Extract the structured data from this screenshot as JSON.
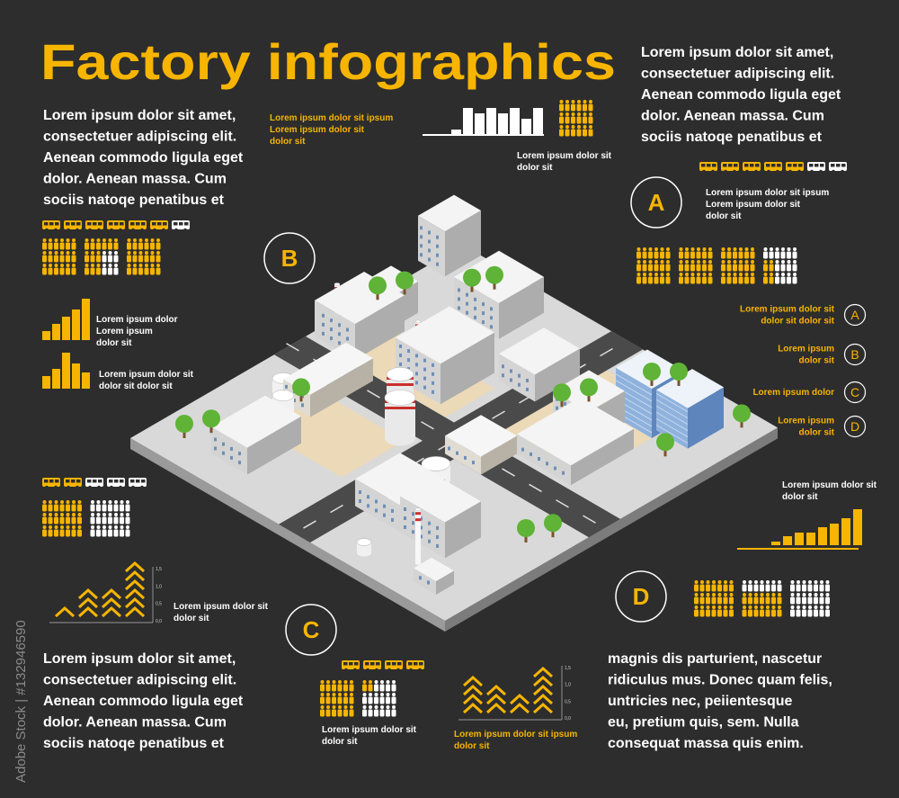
{
  "header": {
    "title": "Factory infographics"
  },
  "intro_left": [
    "Lorem ipsum dolor sit amet,",
    "consectetuer adipiscing elit.",
    "Aenean commodo ligula eget",
    "dolor. Aenean massa. Cum",
    "sociis natoqe penatibus et"
  ],
  "intro_right": [
    "Lorem ipsum dolor sit amet,",
    "consectetuer adipiscing elit.",
    "Aenean commodo ligula eget",
    "dolor. Aenean massa. Cum",
    "sociis natoqe penatibus et"
  ],
  "outro_left": [
    "Lorem ipsum dolor sit amet,",
    "consectetuer adipiscing elit.",
    "Aenean commodo ligula eget",
    "dolor. Aenean massa. Cum",
    "sociis natoqe penatibus et"
  ],
  "outro_right": [
    "magnis dis parturient, nascetur",
    "ridiculus mus. Donec quam felis,",
    "untricies nec, peiientesque",
    "eu, pretium quis, sem. Nulla",
    "consequat massa quis enim."
  ],
  "captions": [
    [
      "Lorem ipsum dolor sit ipsum",
      "Lorem ipsum dolor sit",
      "dolor sit"
    ],
    [
      "Lorem ipsum dolor sit",
      "dolor sit"
    ],
    [
      "Lorem ipsum dolor sit ipsum",
      "Lorem ipsum dolor sit",
      "dolor sit"
    ],
    [
      "Lorem ipsum dolor",
      "Lorem ipsum",
      "dolor sit"
    ],
    [
      "Lorem ipsum dolor sit",
      "dolor sit  dolor sit"
    ],
    [
      "Lorem ipsum dolor sit",
      "dolor sit"
    ],
    [
      "Lorem ipsum dolor sit",
      "dolor sit"
    ],
    [
      "Lorem ipsum dolor sit",
      "dolor sit"
    ],
    [
      "Lorem ipsum dolor sit ipsum",
      "dolor sit"
    ]
  ],
  "markers": [
    "A",
    "B",
    "C",
    "D"
  ],
  "legend": [
    {
      "letter": "A",
      "lines": [
        "Lorem ipsum dolor sit",
        "dolor sit  dolor sit"
      ]
    },
    {
      "letter": "B",
      "lines": [
        "Lorem ipsum",
        "dolor sit"
      ]
    },
    {
      "letter": "C",
      "lines": [
        "Lorem ipsum dolor"
      ]
    },
    {
      "letter": "D",
      "lines": [
        "Lorem ipsum",
        "dolor sit"
      ]
    }
  ],
  "axis_labels": [
    "1,5",
    "1,0",
    "0,5",
    "0,0"
  ],
  "watermark": "Adobe Stock | #132946590"
}
